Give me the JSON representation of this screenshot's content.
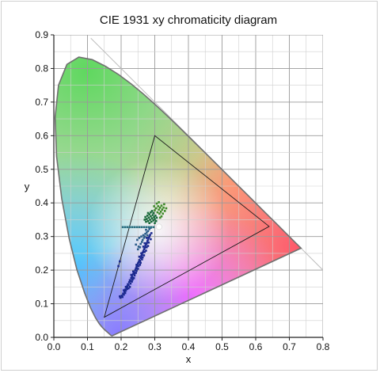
{
  "chart_data": {
    "type": "scatter",
    "title": "CIE 1931 xy chromaticity diagram",
    "xlabel": "x",
    "ylabel": "y",
    "xlim": [
      0.0,
      0.8
    ],
    "ylim": [
      0.0,
      0.9
    ],
    "xticks": [
      "0.0",
      "0.1",
      "0.2",
      "0.3",
      "0.4",
      "0.5",
      "0.6",
      "0.7",
      "0.8"
    ],
    "yticks": [
      "0.0",
      "0.1",
      "0.2",
      "0.3",
      "0.4",
      "0.5",
      "0.6",
      "0.7",
      "0.8",
      "0.9"
    ],
    "grid": true,
    "minor_grid_step": 0.05,
    "spectral_locus": [
      [
        0.1741,
        0.005
      ],
      [
        0.1738,
        0.0049
      ],
      [
        0.1736,
        0.0049
      ],
      [
        0.1733,
        0.0048
      ],
      [
        0.173,
        0.0048
      ],
      [
        0.1726,
        0.0048
      ],
      [
        0.1721,
        0.0048
      ],
      [
        0.1714,
        0.0051
      ],
      [
        0.1703,
        0.0058
      ],
      [
        0.1689,
        0.0069
      ],
      [
        0.1669,
        0.0086
      ],
      [
        0.1644,
        0.0109
      ],
      [
        0.1611,
        0.0138
      ],
      [
        0.1566,
        0.0177
      ],
      [
        0.151,
        0.0227
      ],
      [
        0.144,
        0.0297
      ],
      [
        0.1355,
        0.0399
      ],
      [
        0.1241,
        0.0578
      ],
      [
        0.1096,
        0.0868
      ],
      [
        0.0913,
        0.1327
      ],
      [
        0.0687,
        0.2007
      ],
      [
        0.0454,
        0.295
      ],
      [
        0.0235,
        0.4127
      ],
      [
        0.0082,
        0.5384
      ],
      [
        0.0039,
        0.6548
      ],
      [
        0.0139,
        0.7502
      ],
      [
        0.0389,
        0.812
      ],
      [
        0.0743,
        0.8338
      ],
      [
        0.1142,
        0.8262
      ],
      [
        0.1547,
        0.8059
      ],
      [
        0.1929,
        0.7816
      ],
      [
        0.2296,
        0.7543
      ],
      [
        0.2658,
        0.7243
      ],
      [
        0.3016,
        0.6923
      ],
      [
        0.3373,
        0.6589
      ],
      [
        0.3731,
        0.6245
      ],
      [
        0.4087,
        0.5896
      ],
      [
        0.4441,
        0.5547
      ],
      [
        0.4788,
        0.5202
      ],
      [
        0.5125,
        0.4866
      ],
      [
        0.5448,
        0.4544
      ],
      [
        0.5752,
        0.4242
      ],
      [
        0.6029,
        0.3965
      ],
      [
        0.627,
        0.3725
      ],
      [
        0.6482,
        0.3514
      ],
      [
        0.6658,
        0.334
      ],
      [
        0.6801,
        0.3197
      ],
      [
        0.6915,
        0.3083
      ],
      [
        0.7006,
        0.2993
      ],
      [
        0.7079,
        0.292
      ],
      [
        0.714,
        0.2859
      ],
      [
        0.719,
        0.2809
      ],
      [
        0.723,
        0.277
      ],
      [
        0.726,
        0.274
      ],
      [
        0.7283,
        0.2717
      ],
      [
        0.73,
        0.27
      ],
      [
        0.7311,
        0.2689
      ],
      [
        0.732,
        0.268
      ],
      [
        0.7327,
        0.2673
      ],
      [
        0.7334,
        0.2666
      ],
      [
        0.734,
        0.266
      ],
      [
        0.7344,
        0.2656
      ],
      [
        0.7346,
        0.2654
      ],
      [
        0.7347,
        0.2653
      ]
    ],
    "planckian_boundary_line": [
      [
        0.11,
        0.89
      ],
      [
        0.8,
        0.2
      ]
    ],
    "gamut_triangle": [
      [
        0.64,
        0.33
      ],
      [
        0.3,
        0.6
      ],
      [
        0.15,
        0.06
      ]
    ],
    "white_point": [
      0.3127,
      0.329
    ],
    "series": [
      {
        "color": "#1c2a8f",
        "points": [
          [
            0.198,
            0.118
          ],
          [
            0.202,
            0.124
          ],
          [
            0.206,
            0.13
          ],
          [
            0.208,
            0.127
          ],
          [
            0.21,
            0.136
          ],
          [
            0.212,
            0.142
          ],
          [
            0.214,
            0.139
          ],
          [
            0.216,
            0.148
          ],
          [
            0.218,
            0.152
          ],
          [
            0.22,
            0.158
          ],
          [
            0.222,
            0.155
          ],
          [
            0.224,
            0.164
          ],
          [
            0.226,
            0.17
          ],
          [
            0.228,
            0.168
          ],
          [
            0.23,
            0.176
          ],
          [
            0.232,
            0.182
          ],
          [
            0.234,
            0.178
          ],
          [
            0.236,
            0.188
          ],
          [
            0.238,
            0.194
          ],
          [
            0.24,
            0.19
          ],
          [
            0.242,
            0.2
          ],
          [
            0.244,
            0.205
          ],
          [
            0.246,
            0.21
          ],
          [
            0.248,
            0.214
          ],
          [
            0.25,
            0.22
          ],
          [
            0.252,
            0.224
          ],
          [
            0.254,
            0.23
          ],
          [
            0.256,
            0.228
          ],
          [
            0.258,
            0.236
          ],
          [
            0.26,
            0.242
          ],
          [
            0.262,
            0.246
          ],
          [
            0.264,
            0.252
          ],
          [
            0.266,
            0.256
          ],
          [
            0.268,
            0.262
          ],
          [
            0.27,
            0.266
          ],
          [
            0.272,
            0.272
          ],
          [
            0.274,
            0.276
          ],
          [
            0.276,
            0.28
          ],
          [
            0.278,
            0.286
          ],
          [
            0.28,
            0.29
          ],
          [
            0.282,
            0.296
          ],
          [
            0.284,
            0.3
          ],
          [
            0.286,
            0.305
          ],
          [
            0.212,
            0.132
          ],
          [
            0.222,
            0.146
          ],
          [
            0.228,
            0.16
          ],
          [
            0.234,
            0.172
          ],
          [
            0.24,
            0.184
          ],
          [
            0.246,
            0.198
          ],
          [
            0.252,
            0.212
          ],
          [
            0.258,
            0.222
          ],
          [
            0.264,
            0.238
          ],
          [
            0.27,
            0.254
          ],
          [
            0.276,
            0.268
          ],
          [
            0.282,
            0.282
          ],
          [
            0.218,
            0.144
          ],
          [
            0.226,
            0.15
          ],
          [
            0.232,
            0.166
          ],
          [
            0.238,
            0.176
          ],
          [
            0.244,
            0.192
          ],
          [
            0.25,
            0.204
          ],
          [
            0.256,
            0.216
          ],
          [
            0.262,
            0.232
          ],
          [
            0.268,
            0.244
          ],
          [
            0.274,
            0.258
          ],
          [
            0.28,
            0.272
          ],
          [
            0.288,
            0.292
          ],
          [
            0.196,
            0.122
          ],
          [
            0.204,
            0.12
          ],
          [
            0.26,
            0.25
          ],
          [
            0.266,
            0.27
          ],
          [
            0.246,
            0.216
          ],
          [
            0.236,
            0.196
          ],
          [
            0.23,
            0.186
          ],
          [
            0.254,
            0.24
          ],
          [
            0.214,
            0.15
          ],
          [
            0.208,
            0.14
          ],
          [
            0.27,
            0.28
          ],
          [
            0.276,
            0.296
          ],
          [
            0.29,
            0.31
          ],
          [
            0.192,
            0.212
          ],
          [
            0.196,
            0.226
          ]
        ]
      },
      {
        "color": "#2b5d8a",
        "points": [
          [
            0.25,
            0.262
          ],
          [
            0.252,
            0.27
          ],
          [
            0.256,
            0.268
          ],
          [
            0.258,
            0.278
          ],
          [
            0.262,
            0.284
          ],
          [
            0.264,
            0.29
          ],
          [
            0.268,
            0.296
          ],
          [
            0.27,
            0.3
          ],
          [
            0.26,
            0.3
          ],
          [
            0.272,
            0.308
          ],
          [
            0.276,
            0.312
          ],
          [
            0.28,
            0.316
          ],
          [
            0.248,
            0.29
          ],
          [
            0.254,
            0.296
          ],
          [
            0.266,
            0.304
          ],
          [
            0.274,
            0.32
          ],
          [
            0.284,
            0.322
          ],
          [
            0.288,
            0.326
          ],
          [
            0.244,
            0.276
          ],
          [
            0.278,
            0.304
          ]
        ]
      },
      {
        "color": "#2a6f80",
        "points": [
          [
            0.205,
            0.328
          ],
          [
            0.212,
            0.328
          ],
          [
            0.219,
            0.328
          ],
          [
            0.226,
            0.328
          ],
          [
            0.233,
            0.328
          ],
          [
            0.24,
            0.328
          ],
          [
            0.247,
            0.328
          ],
          [
            0.254,
            0.328
          ],
          [
            0.261,
            0.328
          ],
          [
            0.268,
            0.328
          ],
          [
            0.275,
            0.328
          ],
          [
            0.282,
            0.328
          ],
          [
            0.289,
            0.328
          ],
          [
            0.296,
            0.328
          ]
        ]
      },
      {
        "color": "#1a6b3c",
        "points": [
          [
            0.27,
            0.35
          ],
          [
            0.272,
            0.358
          ],
          [
            0.276,
            0.352
          ],
          [
            0.278,
            0.362
          ],
          [
            0.28,
            0.346
          ],
          [
            0.282,
            0.356
          ],
          [
            0.284,
            0.366
          ],
          [
            0.286,
            0.35
          ],
          [
            0.288,
            0.36
          ],
          [
            0.29,
            0.344
          ],
          [
            0.292,
            0.354
          ],
          [
            0.294,
            0.364
          ],
          [
            0.296,
            0.348
          ],
          [
            0.298,
            0.358
          ],
          [
            0.3,
            0.352
          ],
          [
            0.302,
            0.362
          ],
          [
            0.304,
            0.346
          ],
          [
            0.306,
            0.356
          ],
          [
            0.274,
            0.344
          ],
          [
            0.28,
            0.37
          ],
          [
            0.288,
            0.372
          ],
          [
            0.296,
            0.37
          ],
          [
            0.3,
            0.34
          ],
          [
            0.284,
            0.34
          ],
          [
            0.292,
            0.376
          ]
        ]
      },
      {
        "color": "#3f8a2a",
        "points": [
          [
            0.3,
            0.378
          ],
          [
            0.304,
            0.384
          ],
          [
            0.308,
            0.372
          ],
          [
            0.31,
            0.39
          ],
          [
            0.312,
            0.38
          ],
          [
            0.314,
            0.368
          ],
          [
            0.316,
            0.386
          ],
          [
            0.318,
            0.374
          ],
          [
            0.32,
            0.392
          ],
          [
            0.322,
            0.38
          ],
          [
            0.324,
            0.368
          ],
          [
            0.326,
            0.386
          ],
          [
            0.33,
            0.376
          ],
          [
            0.334,
            0.384
          ],
          [
            0.306,
            0.398
          ],
          [
            0.312,
            0.402
          ],
          [
            0.298,
            0.39
          ],
          [
            0.32,
            0.36
          ],
          [
            0.328,
            0.396
          ],
          [
            0.316,
            0.356
          ]
        ]
      }
    ]
  }
}
